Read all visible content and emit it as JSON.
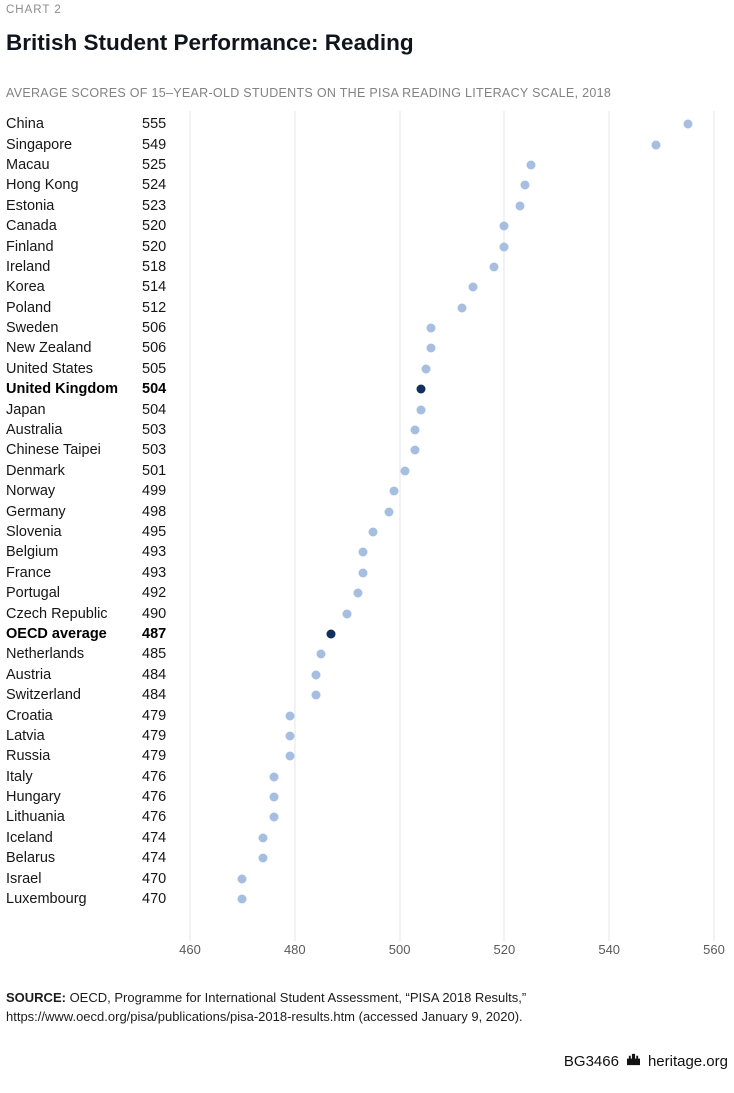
{
  "header": {
    "kicker": "CHART 2",
    "title": "British Student Performance: Reading",
    "subtitle": "AVERAGE SCORES OF 15–YEAR-OLD STUDENTS ON THE PISA READING LITERACY SCALE, 2018"
  },
  "chart_data": {
    "type": "scatter",
    "subtype": "horizontal-dot-plot",
    "xlim": [
      460,
      560
    ],
    "x_ticks": [
      460,
      480,
      500,
      520,
      540,
      560
    ],
    "grid": true,
    "legend": "none",
    "colors": {
      "dot": "#a6bedf",
      "highlight": "#11305e",
      "gridline": "#e2e6ee"
    },
    "rows": [
      {
        "label": "China",
        "value": 555
      },
      {
        "label": "Singapore",
        "value": 549
      },
      {
        "label": "Macau",
        "value": 525
      },
      {
        "label": "Hong Kong",
        "value": 524
      },
      {
        "label": "Estonia",
        "value": 523
      },
      {
        "label": "Canada",
        "value": 520
      },
      {
        "label": "Finland",
        "value": 520
      },
      {
        "label": "Ireland",
        "value": 518
      },
      {
        "label": "Korea",
        "value": 514
      },
      {
        "label": "Poland",
        "value": 512
      },
      {
        "label": "Sweden",
        "value": 506
      },
      {
        "label": "New Zealand",
        "value": 506
      },
      {
        "label": "United States",
        "value": 505
      },
      {
        "label": "United Kingdom",
        "value": 504,
        "highlight": true
      },
      {
        "label": "Japan",
        "value": 504
      },
      {
        "label": "Australia",
        "value": 503
      },
      {
        "label": "Chinese Taipei",
        "value": 503
      },
      {
        "label": "Denmark",
        "value": 501
      },
      {
        "label": "Norway",
        "value": 499
      },
      {
        "label": "Germany",
        "value": 498
      },
      {
        "label": "Slovenia",
        "value": 495
      },
      {
        "label": "Belgium",
        "value": 493
      },
      {
        "label": "France",
        "value": 493
      },
      {
        "label": "Portugal",
        "value": 492
      },
      {
        "label": "Czech Republic",
        "value": 490
      },
      {
        "label": "OECD average",
        "value": 487,
        "highlight": true
      },
      {
        "label": "Netherlands",
        "value": 485
      },
      {
        "label": "Austria",
        "value": 484
      },
      {
        "label": "Switzerland",
        "value": 484
      },
      {
        "label": "Croatia",
        "value": 479
      },
      {
        "label": "Latvia",
        "value": 479
      },
      {
        "label": "Russia",
        "value": 479
      },
      {
        "label": "Italy",
        "value": 476
      },
      {
        "label": "Hungary",
        "value": 476
      },
      {
        "label": "Lithuania",
        "value": 476
      },
      {
        "label": "Iceland",
        "value": 474
      },
      {
        "label": "Belarus",
        "value": 474
      },
      {
        "label": "Israel",
        "value": 470
      },
      {
        "label": "Luxembourg",
        "value": 470
      }
    ]
  },
  "source": {
    "label": "SOURCE:",
    "text": " OECD, Programme for International Student Assessment, “PISA 2018 Results,” https://www.oecd.org/pisa/publications/pisa-2018-results.htm (accessed January 9, 2020)."
  },
  "footer": {
    "id": "BG3466",
    "site": "heritage.org"
  }
}
